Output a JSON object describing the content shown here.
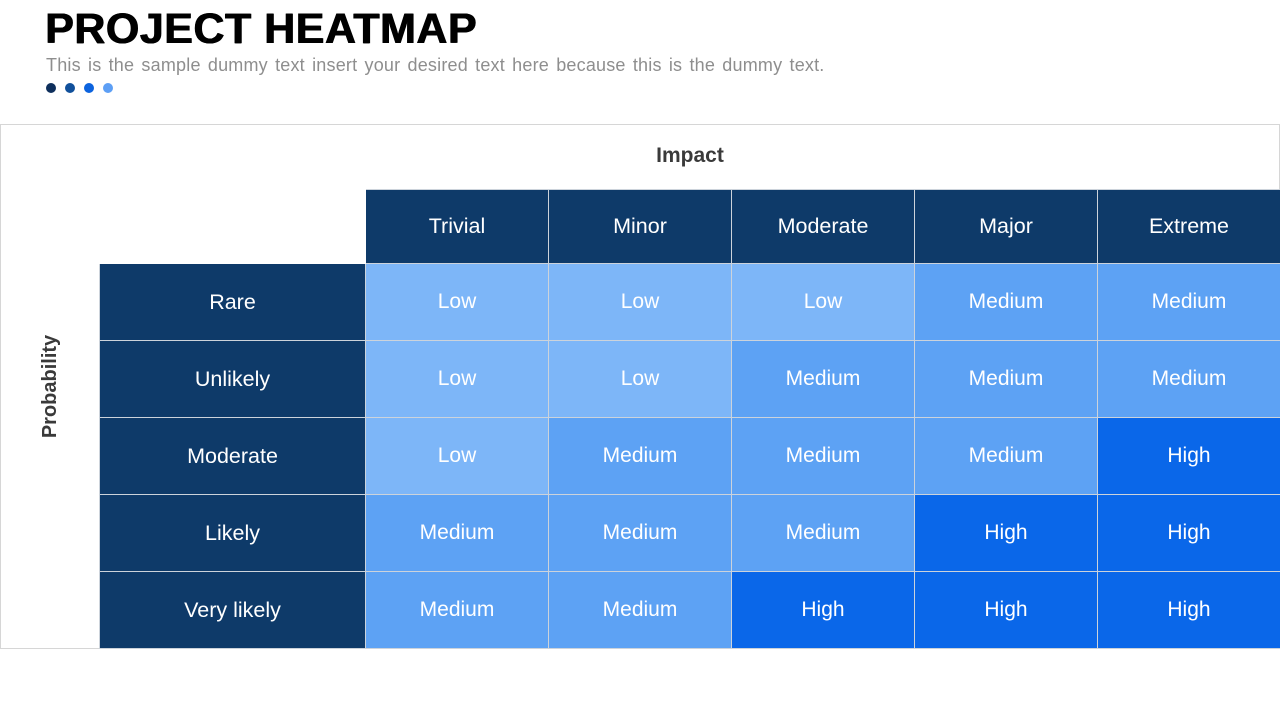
{
  "slide": {
    "title": "PROJECT HEATMAP",
    "subtitle": "This is the sample dummy text insert your desired text here because this is the dummy text.",
    "accent_dots": [
      "#0e2f5c",
      "#11509b",
      "#0c63de",
      "#5d9ff5"
    ]
  },
  "heatmap": {
    "x_axis_label": "Impact",
    "y_axis_label": "Probability",
    "columns": [
      "Trivial",
      "Minor",
      "Moderate",
      "Major",
      "Extreme"
    ],
    "rows": [
      "Rare",
      "Unlikely",
      "Moderate",
      "Likely",
      "Very likely"
    ],
    "cells": [
      [
        "Low",
        "Low",
        "Low",
        "Medium",
        "Medium"
      ],
      [
        "Low",
        "Low",
        "Medium",
        "Medium",
        "Medium"
      ],
      [
        "Low",
        "Medium",
        "Medium",
        "Medium",
        "High"
      ],
      [
        "Medium",
        "Medium",
        "Medium",
        "High",
        "High"
      ],
      [
        "Medium",
        "Medium",
        "High",
        "High",
        "High"
      ]
    ],
    "colors": {
      "header_bg": "#0e3a69",
      "Low": "#7db6f8",
      "Medium": "#5da2f4",
      "High": "#0a67e9"
    }
  },
  "chart_data": {
    "type": "heatmap",
    "title": "PROJECT HEATMAP",
    "xlabel": "Impact",
    "ylabel": "Probability",
    "x_categories": [
      "Trivial",
      "Minor",
      "Moderate",
      "Major",
      "Extreme"
    ],
    "y_categories": [
      "Rare",
      "Unlikely",
      "Moderate",
      "Likely",
      "Very likely"
    ],
    "values": [
      [
        "Low",
        "Low",
        "Low",
        "Medium",
        "Medium"
      ],
      [
        "Low",
        "Low",
        "Medium",
        "Medium",
        "Medium"
      ],
      [
        "Low",
        "Medium",
        "Medium",
        "Medium",
        "High"
      ],
      [
        "Medium",
        "Medium",
        "Medium",
        "High",
        "High"
      ],
      [
        "Medium",
        "Medium",
        "High",
        "High",
        "High"
      ]
    ],
    "value_scale": [
      "Low",
      "Medium",
      "High"
    ],
    "value_colors": {
      "Low": "#7db6f8",
      "Medium": "#5da2f4",
      "High": "#0a67e9"
    },
    "legend": "none",
    "grid": "on"
  }
}
